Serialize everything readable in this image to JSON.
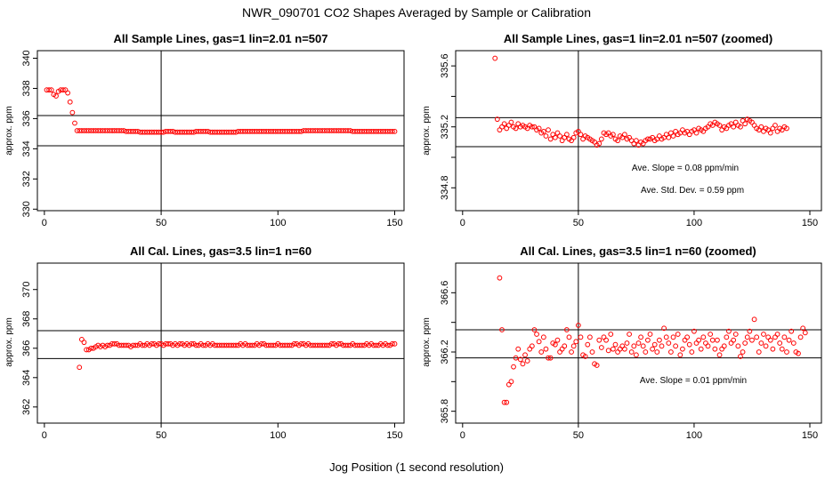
{
  "main_title": "NWR_090701  CO2 Shapes Averaged by Sample or Calibration",
  "x_axis_label": "Jog Position (1 second resolution)",
  "colors": {
    "points": "#ff0000",
    "lines": "#000000",
    "background": "#ffffff"
  },
  "chart_data": [
    {
      "type": "scatter",
      "title": "All Sample Lines, gas=1 lin=2.01 n=507",
      "ylabel": "approx. ppm",
      "xlim": [
        -3,
        154
      ],
      "ylim": [
        329.9,
        340.5
      ],
      "xticks": [
        0,
        50,
        100,
        150
      ],
      "yticks": [
        330,
        332,
        334,
        336,
        338,
        340
      ],
      "vline": 50,
      "hlines": [
        334.2,
        336.2
      ],
      "annotations": [],
      "x_start": 1,
      "y": [
        337.9,
        337.9,
        337.9,
        337.6,
        337.5,
        337.8,
        337.9,
        337.9,
        337.9,
        337.7,
        337.1,
        336.4,
        335.7,
        335.2,
        335.2,
        335.2,
        335.2,
        335.2,
        335.2,
        335.2,
        335.2,
        335.2,
        335.2,
        335.2,
        335.2,
        335.2,
        335.2,
        335.2,
        335.2,
        335.2,
        335.2,
        335.2,
        335.2,
        335.2,
        335.15,
        335.15,
        335.15,
        335.15,
        335.15,
        335.15,
        335.1,
        335.1,
        335.1,
        335.1,
        335.1,
        335.1,
        335.1,
        335.1,
        335.1,
        335.1,
        335.1,
        335.15,
        335.15,
        335.15,
        335.15,
        335.1,
        335.1,
        335.1,
        335.1,
        335.1,
        335.1,
        335.1,
        335.1,
        335.1,
        335.15,
        335.15,
        335.15,
        335.15,
        335.15,
        335.15,
        335.1,
        335.1,
        335.1,
        335.1,
        335.1,
        335.1,
        335.1,
        335.1,
        335.1,
        335.1,
        335.1,
        335.1,
        335.15,
        335.15,
        335.15,
        335.15,
        335.15,
        335.15,
        335.15,
        335.15,
        335.15,
        335.15,
        335.15,
        335.15,
        335.15,
        335.15,
        335.15,
        335.15,
        335.15,
        335.15,
        335.15,
        335.15,
        335.15,
        335.15,
        335.15,
        335.15,
        335.15,
        335.15,
        335.15,
        335.15,
        335.2,
        335.2,
        335.2,
        335.2,
        335.2,
        335.2,
        335.2,
        335.2,
        335.2,
        335.2,
        335.2,
        335.2,
        335.2,
        335.2,
        335.2,
        335.2,
        335.2,
        335.2,
        335.2,
        335.2,
        335.2,
        335.15,
        335.15,
        335.15,
        335.15,
        335.15,
        335.15,
        335.15,
        335.15,
        335.15,
        335.15,
        335.15,
        335.15,
        335.15,
        335.15,
        335.15,
        335.15,
        335.15,
        335.15,
        335.15
      ]
    },
    {
      "type": "scatter",
      "title": "All Sample Lines, gas=1 lin=2.01 n=507 (zoomed)",
      "ylabel": "approx. ppm",
      "xlim": [
        -3,
        155
      ],
      "ylim": [
        334.65,
        335.7
      ],
      "xticks": [
        0,
        50,
        100,
        150
      ],
      "yticks": [
        334.8,
        335.2,
        335.6
      ],
      "vline": 50,
      "hlines": [
        335.07,
        335.26
      ],
      "annotations": [
        "Ave. Slope =  0.08  ppm/min",
        "Ave. Std. Dev. =  0.59  ppm"
      ],
      "x_start": 14,
      "y": [
        335.65,
        335.25,
        335.18,
        335.2,
        335.22,
        335.19,
        335.21,
        335.23,
        335.2,
        335.19,
        335.22,
        335.2,
        335.21,
        335.2,
        335.19,
        335.21,
        335.2,
        335.2,
        335.18,
        335.19,
        335.16,
        335.17,
        335.14,
        335.18,
        335.12,
        335.15,
        335.13,
        335.16,
        335.14,
        335.11,
        335.13,
        335.15,
        335.12,
        335.11,
        335.13,
        335.16,
        335.17,
        335.15,
        335.12,
        335.14,
        335.13,
        335.12,
        335.11,
        335.1,
        335.08,
        335.09,
        335.12,
        335.16,
        335.15,
        335.16,
        335.14,
        335.15,
        335.12,
        335.11,
        335.14,
        335.13,
        335.15,
        335.12,
        335.13,
        335.11,
        335.09,
        335.11,
        335.08,
        335.1,
        335.09,
        335.11,
        335.12,
        335.12,
        335.13,
        335.11,
        335.12,
        335.14,
        335.12,
        335.13,
        335.15,
        335.13,
        335.16,
        335.14,
        335.17,
        335.15,
        335.16,
        335.18,
        335.16,
        335.17,
        335.15,
        335.17,
        335.18,
        335.16,
        335.19,
        335.18,
        335.17,
        335.19,
        335.2,
        335.22,
        335.21,
        335.23,
        335.22,
        335.21,
        335.18,
        335.2,
        335.19,
        335.21,
        335.22,
        335.2,
        335.23,
        335.21,
        335.2,
        335.24,
        335.22,
        335.25,
        335.24,
        335.23,
        335.21,
        335.19,
        335.18,
        335.2,
        335.17,
        335.19,
        335.18,
        335.16,
        335.19,
        335.21,
        335.17,
        335.19,
        335.18,
        335.2,
        335.19
      ]
    },
    {
      "type": "scatter",
      "title": "All Cal. Lines, gas=3.5 lin=1 n=60",
      "ylabel": "approx. ppm",
      "xlim": [
        -3,
        154
      ],
      "ylim": [
        360.9,
        371.8
      ],
      "xticks": [
        0,
        50,
        100,
        150
      ],
      "yticks": [
        362,
        364,
        366,
        368,
        370
      ],
      "vline": 50,
      "hlines": [
        365.3,
        367.2
      ],
      "annotations": [],
      "x_start": 15,
      "y": [
        364.7,
        366.6,
        366.4,
        365.9,
        365.9,
        366.0,
        366.0,
        366.1,
        366.2,
        366.1,
        366.2,
        366.1,
        366.2,
        366.2,
        366.3,
        366.3,
        366.3,
        366.2,
        366.2,
        366.2,
        366.2,
        366.2,
        366.1,
        366.2,
        366.2,
        366.2,
        366.3,
        366.2,
        366.2,
        366.3,
        366.2,
        366.3,
        366.3,
        366.2,
        366.3,
        366.3,
        366.2,
        366.3,
        366.3,
        366.3,
        366.2,
        366.3,
        366.2,
        366.3,
        366.3,
        366.2,
        366.3,
        366.2,
        366.3,
        366.3,
        366.2,
        366.2,
        366.3,
        366.2,
        366.2,
        366.3,
        366.2,
        366.3,
        366.2,
        366.2,
        366.2,
        366.2,
        366.2,
        366.2,
        366.2,
        366.2,
        366.2,
        366.2,
        366.2,
        366.3,
        366.2,
        366.3,
        366.2,
        366.2,
        366.2,
        366.2,
        366.3,
        366.2,
        366.3,
        366.3,
        366.2,
        366.2,
        366.2,
        366.2,
        366.2,
        366.3,
        366.2,
        366.2,
        366.2,
        366.2,
        366.2,
        366.2,
        366.3,
        366.3,
        366.2,
        366.3,
        366.3,
        366.2,
        366.3,
        366.2,
        366.2,
        366.2,
        366.2,
        366.2,
        366.2,
        366.2,
        366.2,
        366.2,
        366.3,
        366.3,
        366.2,
        366.3,
        366.3,
        366.2,
        366.2,
        366.2,
        366.2,
        366.3,
        366.2,
        366.2,
        366.2,
        366.2,
        366.2,
        366.3,
        366.2,
        366.3,
        366.2,
        366.2,
        366.2,
        366.3,
        366.2,
        366.3,
        366.2,
        366.2,
        366.3,
        366.3
      ]
    },
    {
      "type": "scatter",
      "title": "All Cal. Lines, gas=3.5 lin=1 n=60 (zoomed)",
      "ylabel": "approx. ppm",
      "xlim": [
        -3,
        155
      ],
      "ylim": [
        365.72,
        366.8
      ],
      "xticks": [
        0,
        50,
        100,
        150
      ],
      "yticks": [
        365.8,
        366.2,
        366.6
      ],
      "vline": 50,
      "hlines": [
        366.16,
        366.35
      ],
      "annotations": [
        "Ave. Slope =  0.01  ppm/min"
      ],
      "x_start": 16,
      "y": [
        366.7,
        366.35,
        365.86,
        365.86,
        365.98,
        366.0,
        366.1,
        366.16,
        366.22,
        366.15,
        366.12,
        366.18,
        366.14,
        366.22,
        366.24,
        366.35,
        366.32,
        366.27,
        366.2,
        366.3,
        366.22,
        366.16,
        366.16,
        366.26,
        366.25,
        366.28,
        366.2,
        366.22,
        366.24,
        366.35,
        366.3,
        366.2,
        366.24,
        366.27,
        366.38,
        366.3,
        366.18,
        366.17,
        366.25,
        366.3,
        366.2,
        366.12,
        366.11,
        366.28,
        366.23,
        366.3,
        366.28,
        366.21,
        366.32,
        366.22,
        366.25,
        366.2,
        366.22,
        366.24,
        366.22,
        366.26,
        366.32,
        366.2,
        366.24,
        366.18,
        366.26,
        366.3,
        366.24,
        366.2,
        366.28,
        366.32,
        366.22,
        366.25,
        366.2,
        366.28,
        366.24,
        366.36,
        366.3,
        366.26,
        366.2,
        366.3,
        366.24,
        366.32,
        366.18,
        366.22,
        366.28,
        366.3,
        366.25,
        366.2,
        366.34,
        366.26,
        366.28,
        366.22,
        366.3,
        366.26,
        366.24,
        366.32,
        366.28,
        366.22,
        366.28,
        366.18,
        366.22,
        366.24,
        366.3,
        366.34,
        366.26,
        366.28,
        366.32,
        366.24,
        366.17,
        366.2,
        366.26,
        366.3,
        366.34,
        366.28,
        366.42,
        366.3,
        366.2,
        366.26,
        366.32,
        366.24,
        366.3,
        366.28,
        366.22,
        366.3,
        366.32,
        366.26,
        366.22,
        366.3,
        366.2,
        366.28,
        366.34,
        366.26,
        366.2,
        366.19,
        366.3,
        366.36,
        366.33
      ]
    }
  ]
}
